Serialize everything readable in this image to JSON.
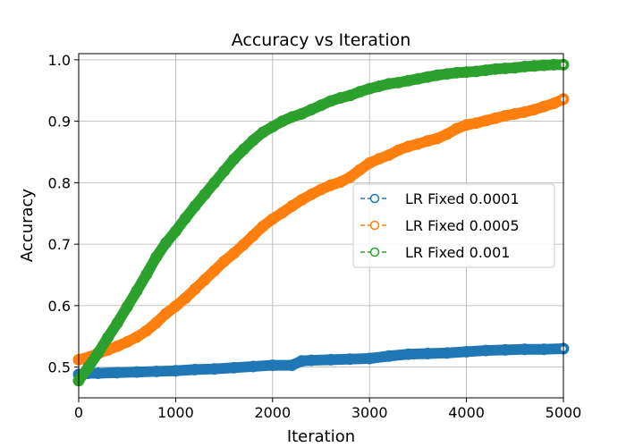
{
  "chart_data": {
    "type": "line",
    "title": "Accuracy vs Iteration",
    "xlabel": "Iteration",
    "ylabel": "Accuracy",
    "xlim": [
      0,
      5000
    ],
    "ylim": [
      0.45,
      1.01
    ],
    "x_ticks": [
      0,
      1000,
      2000,
      3000,
      4000,
      5000
    ],
    "y_ticks": [
      0.5,
      0.6,
      0.7,
      0.8,
      0.9,
      1.0
    ],
    "x_tick_labels": [
      "0",
      "1000",
      "2000",
      "3000",
      "4000",
      "5000"
    ],
    "y_tick_labels": [
      "0.5",
      "0.6",
      "0.7",
      "0.8",
      "0.9",
      "1.0"
    ],
    "grid": true,
    "legend_position": "center-right",
    "series": [
      {
        "name": "LR Fixed 0.0001",
        "color": "#1f77b4",
        "x": [
          0,
          100,
          200,
          400,
          600,
          800,
          1000,
          1200,
          1400,
          1600,
          1800,
          2000,
          2200,
          2300,
          2400,
          2600,
          2800,
          3000,
          3200,
          3400,
          3600,
          3800,
          4000,
          4200,
          4400,
          4600,
          4800,
          5000
        ],
        "values": [
          0.488,
          0.49,
          0.49,
          0.491,
          0.492,
          0.493,
          0.494,
          0.496,
          0.497,
          0.499,
          0.501,
          0.503,
          0.503,
          0.51,
          0.511,
          0.512,
          0.513,
          0.514,
          0.518,
          0.521,
          0.522,
          0.523,
          0.525,
          0.527,
          0.528,
          0.529,
          0.529,
          0.53
        ]
      },
      {
        "name": "LR Fixed 0.0005",
        "color": "#ff7f0e",
        "x": [
          0,
          100,
          200,
          300,
          400,
          500,
          600,
          700,
          800,
          900,
          1000,
          1100,
          1200,
          1300,
          1400,
          1500,
          1600,
          1700,
          1800,
          1900,
          2000,
          2100,
          2200,
          2300,
          2400,
          2500,
          2600,
          2700,
          2800,
          2900,
          3000,
          3100,
          3200,
          3300,
          3400,
          3500,
          3600,
          3700,
          3800,
          3900,
          4000,
          4100,
          4200,
          4300,
          4400,
          4500,
          4600,
          4700,
          4800,
          4900,
          5000
        ],
        "values": [
          0.512,
          0.516,
          0.522,
          0.528,
          0.534,
          0.541,
          0.549,
          0.559,
          0.572,
          0.587,
          0.599,
          0.612,
          0.627,
          0.642,
          0.657,
          0.672,
          0.685,
          0.699,
          0.714,
          0.729,
          0.741,
          0.751,
          0.762,
          0.772,
          0.781,
          0.789,
          0.796,
          0.801,
          0.809,
          0.821,
          0.832,
          0.839,
          0.845,
          0.853,
          0.859,
          0.863,
          0.868,
          0.872,
          0.879,
          0.888,
          0.894,
          0.897,
          0.901,
          0.905,
          0.909,
          0.912,
          0.915,
          0.919,
          0.924,
          0.929,
          0.936
        ]
      },
      {
        "name": "LR Fixed 0.001",
        "color": "#2ca02c",
        "x": [
          0,
          100,
          200,
          300,
          400,
          500,
          600,
          700,
          800,
          900,
          1000,
          1100,
          1200,
          1300,
          1400,
          1500,
          1600,
          1700,
          1800,
          1900,
          2000,
          2100,
          2200,
          2300,
          2400,
          2500,
          2600,
          2700,
          2800,
          2900,
          3000,
          3100,
          3200,
          3300,
          3400,
          3500,
          3600,
          3700,
          3800,
          3900,
          4000,
          4100,
          4200,
          4300,
          4400,
          4500,
          4600,
          4700,
          4800,
          4900,
          5000
        ],
        "values": [
          0.478,
          0.5,
          0.523,
          0.548,
          0.572,
          0.598,
          0.624,
          0.651,
          0.679,
          0.702,
          0.721,
          0.742,
          0.762,
          0.781,
          0.8,
          0.819,
          0.838,
          0.854,
          0.869,
          0.882,
          0.891,
          0.9,
          0.907,
          0.912,
          0.919,
          0.926,
          0.933,
          0.938,
          0.942,
          0.948,
          0.953,
          0.957,
          0.961,
          0.963,
          0.966,
          0.969,
          0.972,
          0.975,
          0.977,
          0.979,
          0.98,
          0.981,
          0.983,
          0.985,
          0.986,
          0.987,
          0.989,
          0.99,
          0.991,
          0.992,
          0.992
        ]
      }
    ]
  }
}
